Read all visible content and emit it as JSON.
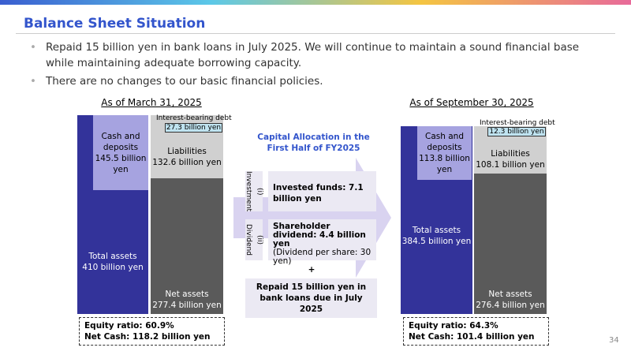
{
  "header": {
    "title": "Balance Sheet Situation",
    "page_number": "34"
  },
  "bullets": [
    "Repaid 15 billion yen in bank loans in July 2025. We will continue to maintain a sound financial base while maintaining adequate borrowing capacity.",
    "There are no changes to our basic financial policies."
  ],
  "before": {
    "date": "As of March 31, 2025",
    "cash": "Cash and deposits 145.5 billion yen",
    "total_assets": "Total assets",
    "total_assets_value": "410 billion yen",
    "debt_label": "Interest-bearing debt",
    "debt_value": "27.3 billion yen",
    "liabilities": "Liabilities",
    "liabilities_value": "132.6 billion yen",
    "net_assets": "Net assets",
    "net_assets_value": "277.4 billion yen",
    "equity_ratio": "Equity ratio: 60.9%",
    "net_cash": "Net Cash: 118.2 billion yen"
  },
  "allocation": {
    "title": "Capital Allocation in the First Half of FY2025",
    "investment_label": "(i) Investment",
    "investment_text": "Invested funds: 7.1 billion yen",
    "dividend_label": "(ii) Dividend",
    "dividend_text": "Shareholder dividend: 4.4 billion yen",
    "dividend_note": "(Dividend per share: 30 yen)",
    "plus": "+",
    "repaid": "Repaid 15 billion yen in bank loans due in July 2025"
  },
  "after": {
    "date": "As of September 30, 2025",
    "cash": "Cash and deposits 113.8 billion yen",
    "total_assets": "Total assets",
    "total_assets_value": "384.5 billion yen",
    "debt_label": "Interest-bearing debt",
    "debt_value": "12.3 billion yen",
    "liabilities": "Liabilities",
    "liabilities_value": "108.1 billion yen",
    "net_assets": "Net assets",
    "net_assets_value": "276.4 billion yen",
    "equity_ratio": "Equity ratio: 64.3%",
    "net_cash": "Net Cash: 101.4 billion yen"
  }
}
